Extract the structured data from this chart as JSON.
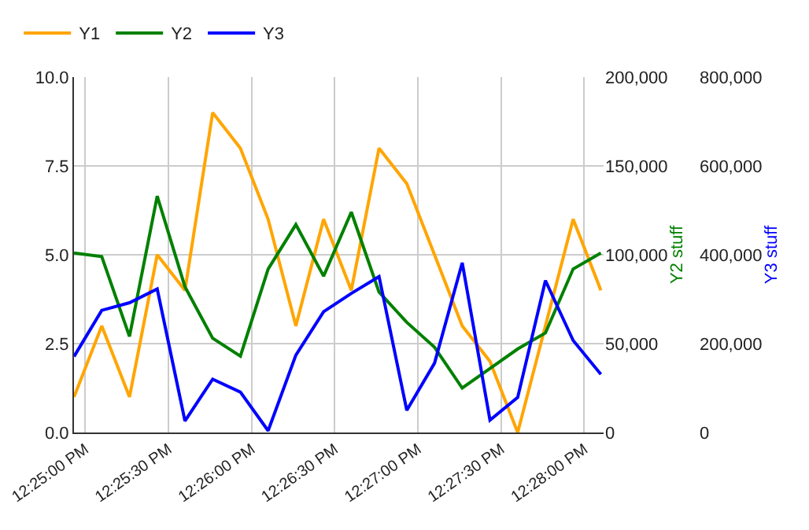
{
  "chart_data": {
    "type": "line",
    "x": [
      12.415556,
      12.418333,
      12.421111,
      12.423889,
      12.426667,
      12.429444,
      12.432222,
      12.435,
      12.437778,
      12.440556,
      12.443333,
      12.446111,
      12.448889,
      12.451667,
      12.454444,
      12.457222,
      12.46,
      12.462778,
      12.465556,
      12.468333
    ],
    "series": [
      {
        "name": "Y1",
        "color": "#ffa500",
        "values": [
          1,
          3,
          1,
          5,
          4,
          9,
          8,
          6,
          3,
          6,
          4,
          8,
          7,
          5,
          3,
          2,
          0,
          3,
          6,
          4
        ]
      },
      {
        "name": "Y2",
        "color": "#008000",
        "axis": "y2",
        "values": [
          101000,
          99000,
          54000,
          133000,
          82000,
          53000,
          43000,
          92000,
          117000,
          88000,
          124000,
          79000,
          62000,
          48000,
          25000,
          36000,
          47000,
          56000,
          92000,
          101000
        ]
      },
      {
        "name": "Y3",
        "color": "#0000ff",
        "axis": "y3",
        "values": [
          171000,
          275000,
          292000,
          323000,
          26000,
          120000,
          91000,
          4000,
          174000,
          272000,
          313000,
          351000,
          50000,
          156000,
          382000,
          28000,
          79000,
          342000,
          207000,
          131000
        ]
      }
    ],
    "y2label": "Y2 stuff",
    "y3label": "Y3 stuff",
    "xlim": [
      12.41555,
      12.46861
    ],
    "xticks": [
      {
        "value": 12.416667,
        "label": "12:25:00 PM"
      },
      {
        "value": 12.425,
        "label": "12:25:30 PM"
      },
      {
        "value": 12.433333,
        "label": "12:26:00 PM"
      },
      {
        "value": 12.441667,
        "label": "12:26:30 PM"
      },
      {
        "value": 12.45,
        "label": "12:27:00 PM"
      },
      {
        "value": 12.458333,
        "label": "12:27:30 PM"
      },
      {
        "value": 12.466667,
        "label": "12:28:00 PM"
      }
    ],
    "ylim": [
      0,
      10
    ],
    "yticks": [
      {
        "value": 0,
        "label": "0.0"
      },
      {
        "value": 2.5,
        "label": "2.5"
      },
      {
        "value": 5,
        "label": "5.0"
      },
      {
        "value": 7.5,
        "label": "7.5"
      },
      {
        "value": 10,
        "label": "10.0"
      }
    ],
    "y2lim": [
      0,
      200000
    ],
    "y2ticks": [
      0,
      {
        "value": 50000,
        "label": "50,000"
      },
      {
        "value": 100000,
        "label": "100,000"
      },
      {
        "value": 150000,
        "label": "150,000"
      },
      {
        "value": 200000,
        "label": "200,000"
      }
    ],
    "y3lim": [
      0,
      800000
    ],
    "y3ticks": [
      0,
      {
        "value": 200000,
        "label": "200,000"
      },
      {
        "value": 400000,
        "label": "400,000"
      },
      {
        "value": 600000,
        "label": "600,000"
      },
      {
        "value": 800000,
        "label": "800,000"
      }
    ],
    "grid": true,
    "legend": "top left",
    "marker": "none",
    "line_style": "solid"
  }
}
